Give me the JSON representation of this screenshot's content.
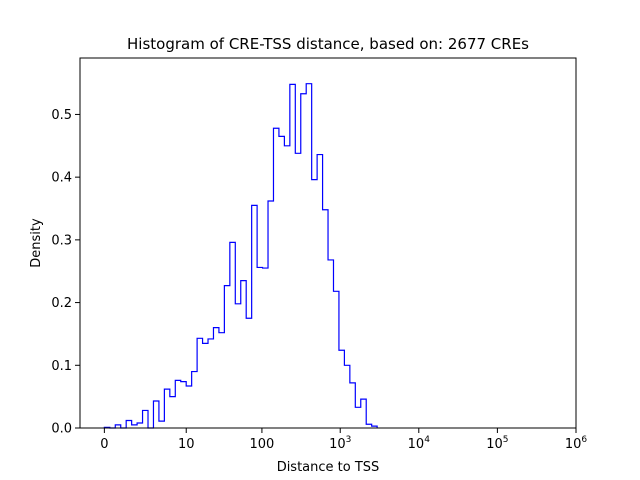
{
  "chart_data": {
    "type": "histogram",
    "title": "Histogram of CRE-TSS distance, based on: 2677 CREs",
    "xlabel": "Distance to TSS",
    "ylabel": "Density",
    "x_scale": "symlog",
    "x_tick_labels": [
      {
        "base": "0",
        "exp": ""
      },
      {
        "base": "10",
        "exp": ""
      },
      {
        "base": "100",
        "exp": ""
      },
      {
        "base": "10",
        "exp": "3"
      },
      {
        "base": "10",
        "exp": "4"
      },
      {
        "base": "10",
        "exp": "5"
      },
      {
        "base": "10",
        "exp": "6"
      }
    ],
    "x_tick_values": [
      0,
      10,
      100,
      1000,
      10000,
      100000,
      1000000
    ],
    "y_ticks": [
      0.0,
      0.1,
      0.2,
      0.3,
      0.4,
      0.5
    ],
    "y_tick_labels": [
      "0.0",
      "0.1",
      "0.2",
      "0.3",
      "0.4",
      "0.5"
    ],
    "ylim": [
      0,
      0.59
    ],
    "line_color": "#0000ff",
    "bins_range_symlog": [
      0,
      3.47
    ],
    "densities": [
      0.001,
      0.0,
      0.005,
      0.0,
      0.012,
      0.005,
      0.008,
      0.028,
      0.0,
      0.043,
      0.011,
      0.062,
      0.05,
      0.076,
      0.074,
      0.067,
      0.09,
      0.143,
      0.135,
      0.142,
      0.16,
      0.152,
      0.227,
      0.296,
      0.198,
      0.235,
      0.175,
      0.355,
      0.256,
      0.255,
      0.362,
      0.478,
      0.465,
      0.45,
      0.548,
      0.438,
      0.533,
      0.549,
      0.396,
      0.436,
      0.348,
      0.268,
      0.218,
      0.124,
      0.1,
      0.072,
      0.033,
      0.046,
      0.006,
      0.003
    ]
  }
}
